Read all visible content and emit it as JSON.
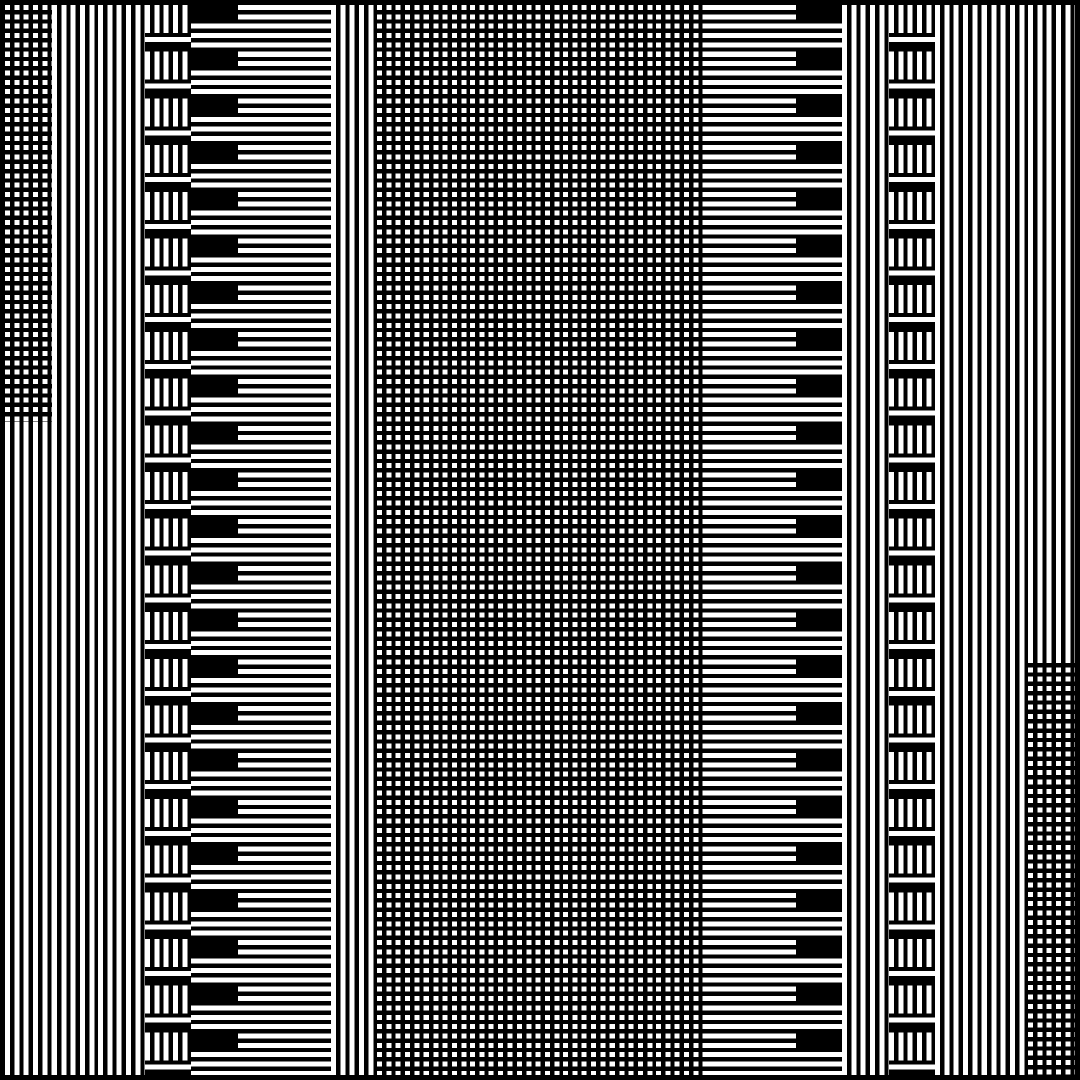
{
  "colors": {
    "foreground": "#ffffff",
    "background": "#000000"
  },
  "columns": [
    {
      "pattern": "dots",
      "lower": "vertical",
      "split": 0.39
    },
    {
      "pattern": "vertical"
    },
    {
      "pattern": "vertical"
    },
    {
      "pattern": "mixed-vertical-horizontal"
    },
    {
      "pattern": "mixed-horizontal"
    },
    {
      "pattern": "horizontal"
    },
    {
      "pattern": "horizontal"
    },
    {
      "pattern": "vertical"
    },
    {
      "pattern": "dots"
    },
    {
      "pattern": "dots"
    },
    {
      "pattern": "dots"
    },
    {
      "pattern": "dots"
    },
    {
      "pattern": "dots"
    },
    {
      "pattern": "dots"
    },
    {
      "pattern": "dots"
    },
    {
      "pattern": "horizontal"
    },
    {
      "pattern": "horizontal"
    },
    {
      "pattern": "mixed-horizontal"
    },
    {
      "pattern": "vertical"
    },
    {
      "pattern": "mixed-vertical-horizontal"
    },
    {
      "pattern": "vertical"
    },
    {
      "pattern": "vertical"
    },
    {
      "pattern": "vertical",
      "lower": "dots",
      "split": 0.61
    }
  ]
}
